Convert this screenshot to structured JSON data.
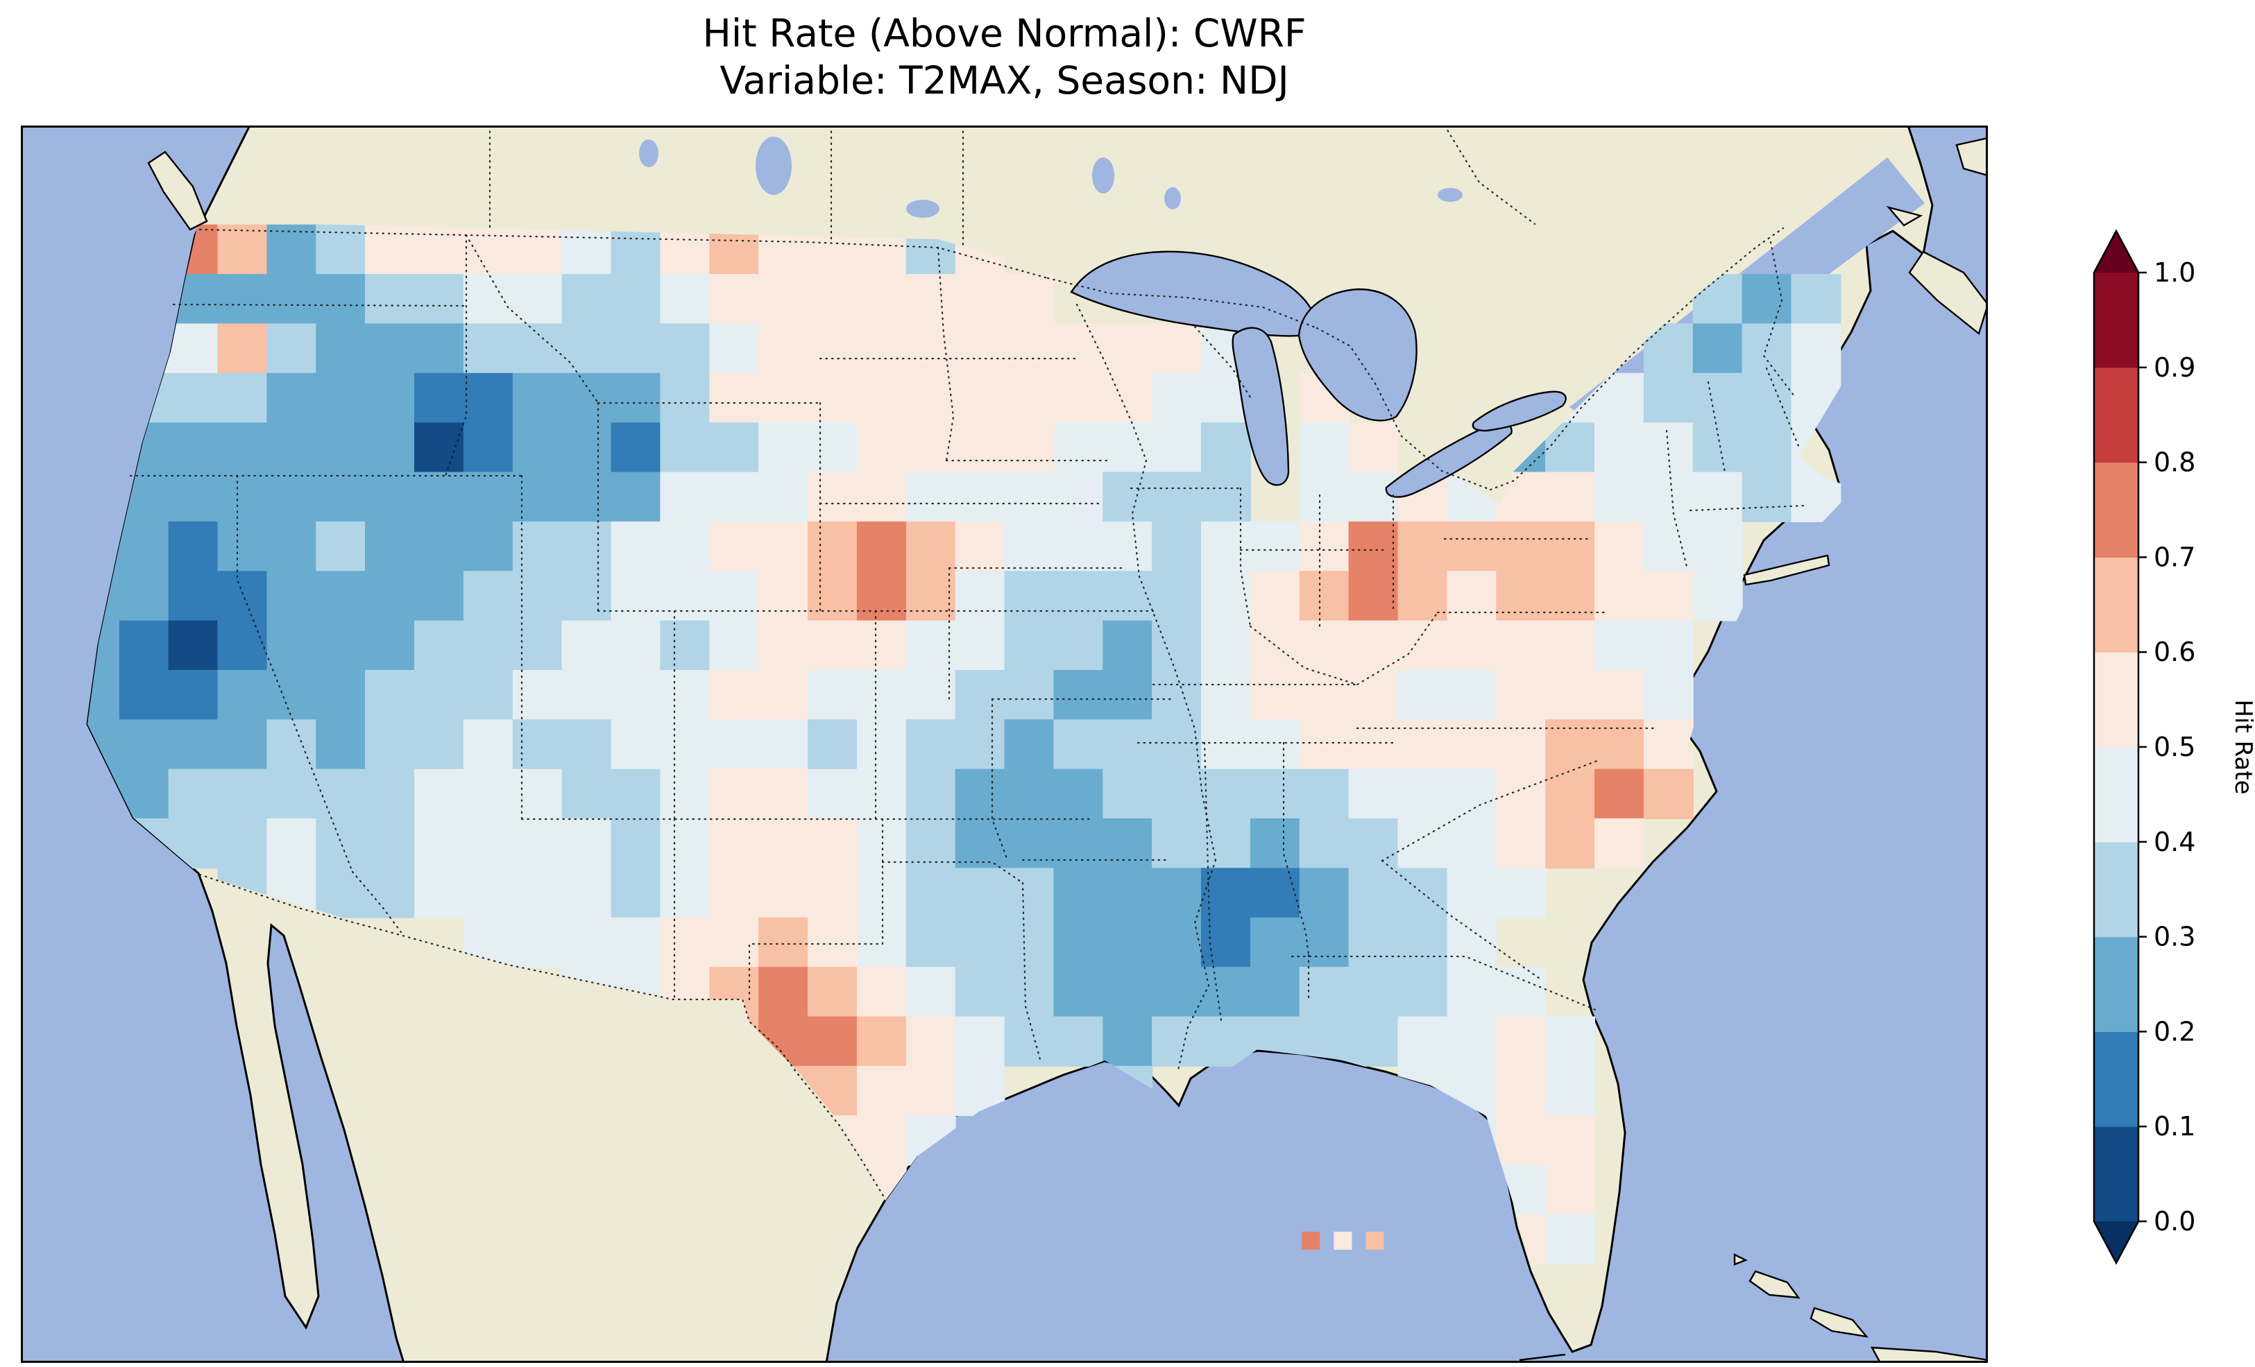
{
  "title": {
    "line1": "Hit Rate (Above Normal): CWRF",
    "line2": "Variable: T2MAX, Season: NDJ"
  },
  "colorbar": {
    "label": "Hit Rate",
    "ticks": [
      "1.0",
      "0.9",
      "0.8",
      "0.7",
      "0.6",
      "0.5",
      "0.4",
      "0.3",
      "0.2",
      "0.1",
      "0.0"
    ],
    "extend": "both",
    "under_color": "#053061",
    "over_color": "#67001f"
  },
  "chart_data": {
    "type": "heatmap",
    "title": "Hit Rate (Above Normal): CWRF",
    "subtitle": "Variable: T2MAX, Season: NDJ",
    "metric": "Hit Rate (Above Normal)",
    "model": "CWRF",
    "variable": "T2MAX",
    "season": "NDJ",
    "colorbar_label": "Hit Rate",
    "value_range": [
      0,
      1
    ],
    "tick_step": 0.1,
    "legend_position": "right",
    "palette": [
      "#134b86",
      "#327cb7",
      "#6aacd0",
      "#b1d5e7",
      "#e4eef3",
      "#fae9df",
      "#f8c0a4",
      "#e58267",
      "#c43c3c",
      "#8c0c25"
    ],
    "map_colors": {
      "ocean": "#9fb6e1",
      "land": "#edebd6",
      "coast": "#000000"
    },
    "grid_cols": 40,
    "grid_rows": 25,
    "grid_encoding": "each char = hit-rate bucket index 0-9 (value = (i+0.5)/10); '.' = no data outside CONUS",
    "grid": [
      "........................................",
      "........................................",
      ".4376235555435655535....................",
      ".43222233443345555555.............323...",
      ".444632223333345555555554........3234...",
      ".433322211222355555555544.5...3443334...",
      ".322222201221334455554443.45..2344334...",
      ".322222222222444554444333.44545544434...",
      ".2212232223344556765444344576666544.....",
      ".2211222233344456764333345676566554.....",
      ".210122233344345554433234555555544......",
      ".211222333444455444332234555445554......",
      ".222232334334444343323334455555665......",
      ".223333344433455443222333334445676......",
      ".33334334444345554322223323344565.......",
      "....343344443455543332221123344.........",
      ".........444455654333222122334..........",
      "...........44567654332222233344.........",
      "............45677654332333334454........",
      ".............5566554..3.....4454........",
      "..............55554..........455........",
      "................55...........545........",
      "..............................54........",
      "........................................",
      "........................................"
    ],
    "stray_cells": [
      {
        "col": 26.05,
        "row": 22.35,
        "bucket": 7
      },
      {
        "col": 26.7,
        "row": 22.35,
        "bucket": 5
      },
      {
        "col": 27.35,
        "row": 22.35,
        "bucket": 6
      }
    ]
  }
}
